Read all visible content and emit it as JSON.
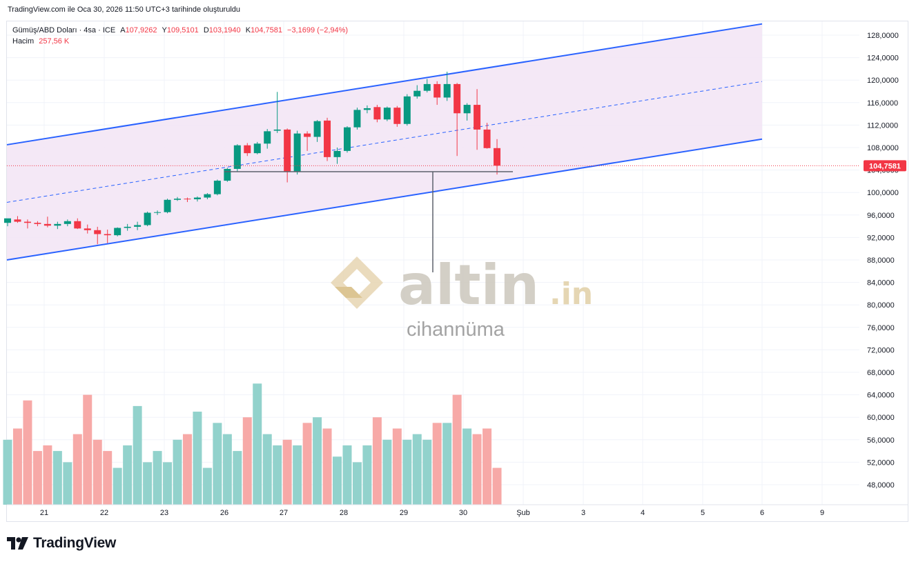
{
  "header": {
    "caption": "TradingView.com ile Oca 30, 2026 11:50 UTC+3 tarihinde oluşturuldu"
  },
  "legend": {
    "symbol": "Gümüş/ABD Doları · 4sa · ICE",
    "open_label": "A",
    "open": "107,9262",
    "high_label": "Y",
    "high": "109,5101",
    "low_label": "D",
    "low": "103,1940",
    "close_label": "K",
    "close": "104,7581",
    "change": "−3,1699 (−2,94%)",
    "volume_label": "Hacim",
    "volume": "257,56 K"
  },
  "watermark": {
    "brand": "altin",
    "brand_suffix": ".in",
    "subtitle": "cihannüma"
  },
  "footer": {
    "logo_text": "TradingView"
  },
  "colors": {
    "up": "#089981",
    "down": "#f23645",
    "up_volume": "#92d2cc",
    "down_volume": "#f7a9a7",
    "channel_line": "#2962ff",
    "channel_fill": "#f3e5f5"
  },
  "chart_data": {
    "type": "candlestick",
    "y_axis": {
      "ticks": [
        "128,0000",
        "124,0000",
        "120,0000",
        "116,0000",
        "112,0000",
        "108,0000",
        "104,0000",
        "100,0000",
        "96,0000",
        "92,0000",
        "88,0000",
        "84,0000",
        "80,0000",
        "76,0000",
        "72,0000",
        "68,0000",
        "64,0000",
        "60,0000",
        "56,0000",
        "52,0000",
        "48,0000"
      ],
      "range": [
        44.5,
        130.5
      ]
    },
    "x_axis": {
      "labels": [
        "21",
        "22",
        "23",
        "26",
        "27",
        "28",
        "29",
        "30",
        "Şub",
        "3",
        "4",
        "5",
        "6",
        "9"
      ]
    },
    "last_price_label": "104,7581",
    "last_volume_label": "257,56 K",
    "candles": [
      {
        "o": 94.6,
        "h": 95.2,
        "l": 94.0,
        "c": 95.4
      },
      {
        "o": 95.2,
        "h": 95.8,
        "l": 94.6,
        "c": 94.8
      },
      {
        "o": 94.8,
        "h": 95.2,
        "l": 93.6,
        "c": 94.6
      },
      {
        "o": 94.6,
        "h": 94.9,
        "l": 94.0,
        "c": 94.4
      },
      {
        "o": 94.4,
        "h": 95.7,
        "l": 93.8,
        "c": 94.1
      },
      {
        "o": 94.1,
        "h": 94.8,
        "l": 93.5,
        "c": 94.4
      },
      {
        "o": 94.4,
        "h": 95.2,
        "l": 94.0,
        "c": 94.9
      },
      {
        "o": 94.9,
        "h": 95.4,
        "l": 93.5,
        "c": 93.6
      },
      {
        "o": 93.6,
        "h": 94.3,
        "l": 92.7,
        "c": 93.3
      },
      {
        "o": 93.3,
        "h": 93.9,
        "l": 90.8,
        "c": 92.6
      },
      {
        "o": 92.6,
        "h": 93.4,
        "l": 91.0,
        "c": 92.4
      },
      {
        "o": 92.4,
        "h": 93.8,
        "l": 92.2,
        "c": 93.7
      },
      {
        "o": 93.7,
        "h": 94.4,
        "l": 93.2,
        "c": 93.9
      },
      {
        "o": 93.9,
        "h": 94.8,
        "l": 93.3,
        "c": 94.2
      },
      {
        "o": 94.2,
        "h": 96.6,
        "l": 94.0,
        "c": 96.4
      },
      {
        "o": 96.4,
        "h": 96.8,
        "l": 96.0,
        "c": 96.5
      },
      {
        "o": 96.5,
        "h": 98.9,
        "l": 96.3,
        "c": 98.7
      },
      {
        "o": 98.7,
        "h": 99.2,
        "l": 98.5,
        "c": 98.9
      },
      {
        "o": 98.9,
        "h": 99.1,
        "l": 98.3,
        "c": 98.8
      },
      {
        "o": 98.8,
        "h": 99.3,
        "l": 98.4,
        "c": 99.1
      },
      {
        "o": 99.1,
        "h": 99.9,
        "l": 98.8,
        "c": 99.7
      },
      {
        "o": 99.7,
        "h": 102.3,
        "l": 99.5,
        "c": 102.1
      },
      {
        "o": 102.1,
        "h": 104.4,
        "l": 101.9,
        "c": 104.2
      },
      {
        "o": 104.2,
        "h": 108.6,
        "l": 103.7,
        "c": 108.4
      },
      {
        "o": 108.4,
        "h": 108.8,
        "l": 106.5,
        "c": 107.0
      },
      {
        "o": 107.0,
        "h": 109.0,
        "l": 106.8,
        "c": 108.7
      },
      {
        "o": 108.7,
        "h": 111.3,
        "l": 107.8,
        "c": 110.9
      },
      {
        "o": 111.0,
        "h": 117.9,
        "l": 110.6,
        "c": 111.2
      },
      {
        "o": 111.2,
        "h": 111.4,
        "l": 101.8,
        "c": 103.7
      },
      {
        "o": 103.7,
        "h": 111.0,
        "l": 103.2,
        "c": 110.5
      },
      {
        "o": 110.5,
        "h": 110.9,
        "l": 107.4,
        "c": 109.9
      },
      {
        "o": 109.9,
        "h": 112.9,
        "l": 109.0,
        "c": 112.7
      },
      {
        "o": 112.8,
        "h": 113.3,
        "l": 105.6,
        "c": 106.3
      },
      {
        "o": 106.3,
        "h": 108.0,
        "l": 105.1,
        "c": 107.4
      },
      {
        "o": 107.4,
        "h": 111.8,
        "l": 107.1,
        "c": 111.6
      },
      {
        "o": 111.6,
        "h": 115.1,
        "l": 111.2,
        "c": 114.7
      },
      {
        "o": 114.7,
        "h": 115.5,
        "l": 114.1,
        "c": 115.0
      },
      {
        "o": 115.2,
        "h": 115.6,
        "l": 112.5,
        "c": 113.0
      },
      {
        "o": 113.0,
        "h": 115.3,
        "l": 112.7,
        "c": 115.1
      },
      {
        "o": 115.1,
        "h": 115.4,
        "l": 111.7,
        "c": 112.2
      },
      {
        "o": 112.2,
        "h": 117.5,
        "l": 111.9,
        "c": 117.1
      },
      {
        "o": 117.1,
        "h": 119.1,
        "l": 116.7,
        "c": 118.1
      },
      {
        "o": 118.1,
        "h": 120.2,
        "l": 117.8,
        "c": 119.3
      },
      {
        "o": 119.3,
        "h": 119.8,
        "l": 115.6,
        "c": 116.9
      },
      {
        "o": 116.9,
        "h": 121.5,
        "l": 116.3,
        "c": 119.3
      },
      {
        "o": 119.3,
        "h": 119.5,
        "l": 106.5,
        "c": 114.1
      },
      {
        "o": 114.1,
        "h": 115.9,
        "l": 112.8,
        "c": 115.6
      },
      {
        "o": 115.6,
        "h": 118.4,
        "l": 107.6,
        "c": 111.2
      },
      {
        "o": 111.2,
        "h": 112.4,
        "l": 107.8,
        "c": 107.9
      },
      {
        "o": 107.9,
        "h": 109.5,
        "l": 103.2,
        "c": 104.8
      }
    ],
    "volume_axis_ticks": [
      "64,0000",
      "60,0000",
      "56,0000",
      "52,0000",
      "48,0000"
    ],
    "volume": [
      56,
      58,
      63,
      54,
      55,
      54,
      52,
      57,
      64,
      56,
      54,
      51,
      55,
      62,
      52,
      54,
      52,
      56,
      57,
      61,
      51,
      59,
      57,
      54,
      60,
      66,
      57,
      55,
      56,
      55,
      59,
      60,
      58,
      53,
      55,
      52,
      55,
      60,
      56,
      58,
      56,
      57,
      56,
      59,
      59,
      64,
      58,
      57,
      58,
      51
    ]
  }
}
